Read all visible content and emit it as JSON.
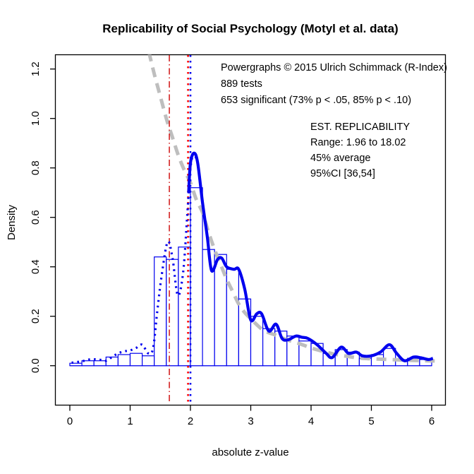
{
  "title": "Replicability of Social Psychology (Motyl et al. data)",
  "annotations": {
    "credit": "Powergraphs © 2015 Ulrich Schimmack (R-Index)",
    "tests": "889 tests",
    "significant": "653 significant (73% p < .05, 85% p < .10)",
    "est_heading": "EST. REPLICABILITY",
    "est_range": "Range: 1.96 to 18.02",
    "est_average": "45% average",
    "est_ci": "95%CI [36,54]"
  },
  "chart_data": {
    "type": "bar",
    "subtype": "histogram-with-density-curves",
    "title": "Replicability of Social Psychology (Motyl et al. data)",
    "xlabel": "absolute z-value",
    "ylabel": "Density",
    "xlim": [
      -0.25,
      6.23
    ],
    "ylim": [
      0,
      1.26
    ],
    "grid": false,
    "x_ticks": [
      0,
      1,
      2,
      3,
      4,
      5,
      6
    ],
    "x_tick_labels": [
      "0",
      "1",
      "2",
      "3",
      "4",
      "5",
      "6"
    ],
    "y_ticks": [
      0.0,
      0.2,
      0.4,
      0.6,
      0.8,
      1.0,
      1.2
    ],
    "y_tick_labels": [
      "0.0",
      "0.2",
      "0.4",
      "0.6",
      "0.8",
      "1.0",
      "1.2"
    ],
    "histogram": {
      "name": "histogram of absolute z-values",
      "color": "#0000EE",
      "fill": "#ffffff",
      "bin_start": 0,
      "bin_width": 0.2,
      "heights": [
        0.01,
        0.02,
        0.02,
        0.035,
        0.045,
        0.05,
        0.04,
        0.44,
        0.43,
        0.48,
        0.72,
        0.47,
        0.45,
        0.39,
        0.27,
        0.2,
        0.15,
        0.14,
        0.12,
        0.1,
        0.09,
        0.05,
        0.065,
        0.055,
        0.03,
        0.045,
        0.07,
        0.02,
        0.03,
        0.025
      ]
    },
    "series": [
      {
        "name": "predicted density (power estimate)",
        "style": "dashed",
        "color": "#BEBEBE",
        "width": 5,
        "points": [
          [
            1.31,
            1.27
          ],
          [
            1.4,
            1.18
          ],
          [
            1.5,
            1.09
          ],
          [
            1.6,
            1.0
          ],
          [
            1.7,
            0.925
          ],
          [
            1.8,
            0.85
          ],
          [
            1.9,
            0.79
          ],
          [
            2.0,
            0.74
          ],
          [
            2.1,
            0.67
          ],
          [
            2.2,
            0.62
          ],
          [
            2.3,
            0.54
          ],
          [
            2.4,
            0.47
          ],
          [
            2.5,
            0.41
          ],
          [
            2.6,
            0.35
          ],
          [
            2.7,
            0.3
          ],
          [
            2.8,
            0.25
          ],
          [
            2.9,
            0.215
          ],
          [
            3.0,
            0.19
          ],
          [
            3.2,
            0.145
          ],
          [
            3.4,
            0.125
          ],
          [
            3.6,
            0.105
          ],
          [
            3.8,
            0.09
          ],
          [
            4.0,
            0.072
          ],
          [
            4.2,
            0.058
          ],
          [
            4.4,
            0.046
          ],
          [
            4.6,
            0.038
          ],
          [
            4.8,
            0.031
          ],
          [
            5.0,
            0.028
          ],
          [
            5.2,
            0.026
          ],
          [
            5.4,
            0.024
          ],
          [
            5.6,
            0.022
          ],
          [
            5.8,
            0.021
          ],
          [
            6.05,
            0.019
          ]
        ]
      },
      {
        "name": "observed density (all tests)",
        "style": "dotted",
        "color": "#0000EE",
        "width": 3.2,
        "points": [
          [
            0.03,
            0.012
          ],
          [
            0.2,
            0.018
          ],
          [
            0.35,
            0.026
          ],
          [
            0.5,
            0.024
          ],
          [
            0.6,
            0.02
          ],
          [
            0.7,
            0.035
          ],
          [
            0.8,
            0.05
          ],
          [
            0.9,
            0.058
          ],
          [
            1.0,
            0.062
          ],
          [
            1.1,
            0.072
          ],
          [
            1.2,
            0.085
          ],
          [
            1.3,
            0.05
          ],
          [
            1.38,
            0.07
          ],
          [
            1.45,
            0.22
          ],
          [
            1.52,
            0.36
          ],
          [
            1.62,
            0.5
          ],
          [
            1.7,
            0.44
          ],
          [
            1.79,
            0.285
          ],
          [
            1.88,
            0.38
          ],
          [
            1.95,
            0.62
          ],
          [
            2.0,
            0.8
          ],
          [
            2.06,
            0.86
          ],
          [
            2.1,
            0.83
          ]
        ]
      },
      {
        "name": "observed density (significant tests)",
        "style": "solid",
        "color": "#0000EE",
        "width": 4.2,
        "points": [
          [
            1.97,
            0.7
          ],
          [
            2.0,
            0.82
          ],
          [
            2.06,
            0.86
          ],
          [
            2.12,
            0.82
          ],
          [
            2.2,
            0.66
          ],
          [
            2.28,
            0.52
          ],
          [
            2.35,
            0.385
          ],
          [
            2.45,
            0.43
          ],
          [
            2.52,
            0.435
          ],
          [
            2.6,
            0.4
          ],
          [
            2.72,
            0.39
          ],
          [
            2.8,
            0.39
          ],
          [
            2.9,
            0.31
          ],
          [
            3.0,
            0.185
          ],
          [
            3.1,
            0.21
          ],
          [
            3.18,
            0.21
          ],
          [
            3.3,
            0.14
          ],
          [
            3.42,
            0.168
          ],
          [
            3.52,
            0.11
          ],
          [
            3.62,
            0.105
          ],
          [
            3.75,
            0.12
          ],
          [
            3.85,
            0.115
          ],
          [
            3.95,
            0.11
          ],
          [
            4.1,
            0.085
          ],
          [
            4.25,
            0.05
          ],
          [
            4.35,
            0.033
          ],
          [
            4.5,
            0.075
          ],
          [
            4.62,
            0.05
          ],
          [
            4.75,
            0.055
          ],
          [
            4.85,
            0.04
          ],
          [
            5.0,
            0.04
          ],
          [
            5.15,
            0.055
          ],
          [
            5.3,
            0.085
          ],
          [
            5.42,
            0.05
          ],
          [
            5.55,
            0.02
          ],
          [
            5.7,
            0.035
          ],
          [
            5.82,
            0.032
          ],
          [
            5.95,
            0.025
          ],
          [
            6.02,
            0.03
          ]
        ]
      }
    ],
    "vlines": [
      {
        "name": "criterion z = 1.65 (p = .10)",
        "x": 1.65,
        "style": "dashdot",
        "color": "#CD0000",
        "width": 1.4
      },
      {
        "name": "criterion z = 1.96 (p = .05)",
        "x": 1.96,
        "style": "dotted",
        "color": "#FF0000",
        "width": 2.6
      },
      {
        "name": "z = 2.00 marker",
        "x": 2.0,
        "style": "dotted",
        "color": "#0000EE",
        "width": 2.6
      }
    ],
    "legend_position": "none"
  }
}
